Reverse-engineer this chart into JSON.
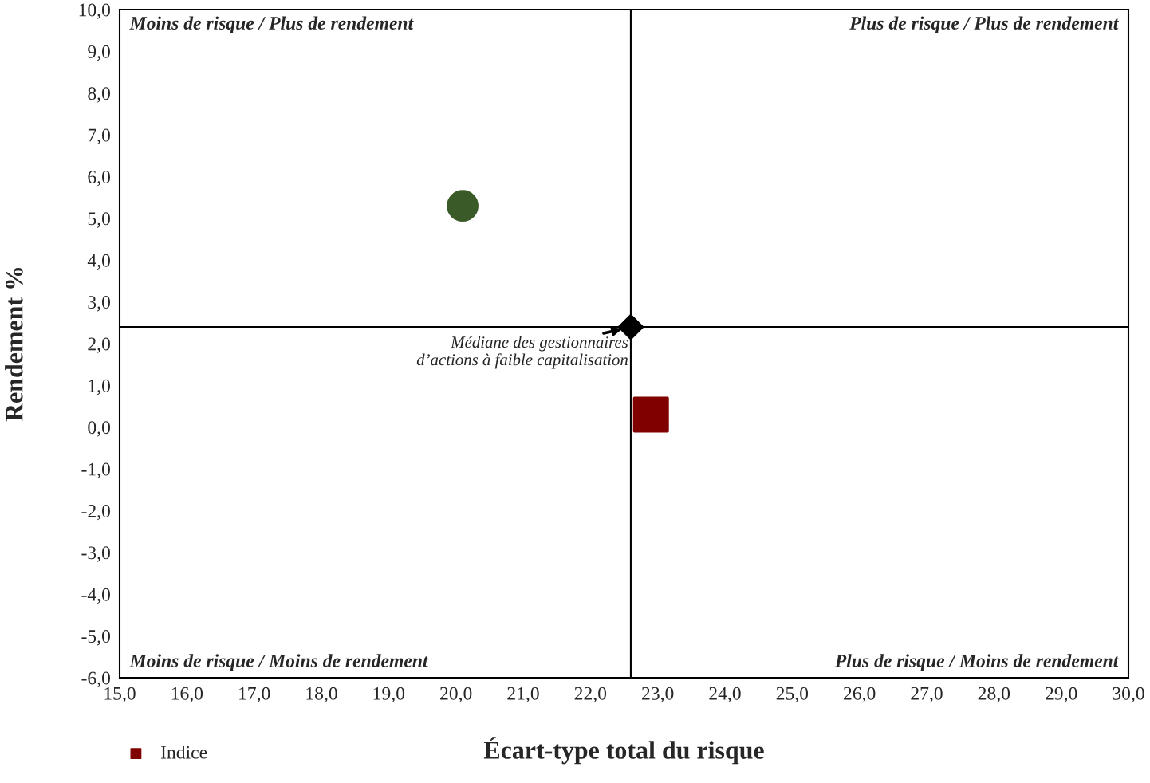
{
  "chart_data": {
    "type": "scatter",
    "xlabel": "Écart-type total du risque",
    "ylabel": "Rendement %",
    "xlim": [
      15.0,
      30.0
    ],
    "xticks": [
      {
        "value": 15,
        "label": "15,0"
      },
      {
        "value": 16,
        "label": "16,0"
      },
      {
        "value": 17,
        "label": "17,0"
      },
      {
        "value": 18,
        "label": "18,0"
      },
      {
        "value": 19,
        "label": "19,0"
      },
      {
        "value": 20,
        "label": "20,0"
      },
      {
        "value": 21,
        "label": "21,0"
      },
      {
        "value": 22,
        "label": "22,0"
      },
      {
        "value": 23,
        "label": "23,0"
      },
      {
        "value": 24,
        "label": "24,0"
      },
      {
        "value": 25,
        "label": "25,0"
      },
      {
        "value": 26,
        "label": "26,0"
      },
      {
        "value": 27,
        "label": "27,0"
      },
      {
        "value": 28,
        "label": "28,0"
      },
      {
        "value": 29,
        "label": "29,0"
      },
      {
        "value": 30,
        "label": "30,0"
      }
    ],
    "ylim": [
      -6.0,
      10.0
    ],
    "yticks": [
      {
        "value": -6,
        "label": "-6,0"
      },
      {
        "value": -5,
        "label": "-5,0"
      },
      {
        "value": -4,
        "label": "-4,0"
      },
      {
        "value": -3,
        "label": "-3,0"
      },
      {
        "value": -2,
        "label": "-2,0"
      },
      {
        "value": -1,
        "label": "-1,0"
      },
      {
        "value": 0,
        "label": "0,0"
      },
      {
        "value": 1,
        "label": "1,0"
      },
      {
        "value": 2,
        "label": "2,0"
      },
      {
        "value": 3,
        "label": "3,0"
      },
      {
        "value": 4,
        "label": "4,0"
      },
      {
        "value": 5,
        "label": "5,0"
      },
      {
        "value": 6,
        "label": "6,0"
      },
      {
        "value": 7,
        "label": "7,0"
      },
      {
        "value": 8,
        "label": "8,0"
      },
      {
        "value": 9,
        "label": "9,0"
      },
      {
        "value": 10,
        "label": "10,0"
      }
    ],
    "series": [
      {
        "color": "#3a5a27",
        "marker": "circle",
        "x": [
          20.1
        ],
        "values": [
          5.3
        ]
      },
      {
        "name": "Indice",
        "color": "#800000",
        "marker": "square",
        "x": [
          22.9
        ],
        "values": [
          0.3
        ]
      },
      {
        "color": "#000000",
        "marker": "diamond",
        "x": [
          22.6
        ],
        "values": [
          2.4
        ]
      }
    ],
    "ref_lines": [
      {
        "axis": "x",
        "value": 22.6,
        "color": "#000000"
      },
      {
        "axis": "y",
        "value": 2.4,
        "color": "#000000"
      }
    ],
    "annotations": [
      "Moins de risque / Plus de rendement",
      "Plus de risque / Plus de rendement",
      "Moins de risque / Moins de rendement",
      "Plus de risque / Moins de rendement",
      {
        "text": "Médiane des gestionnaires\nd’actions à faible capitalisation",
        "x": 22.6,
        "y": 2.4
      }
    ],
    "grid": false,
    "legend": "bottom left"
  }
}
